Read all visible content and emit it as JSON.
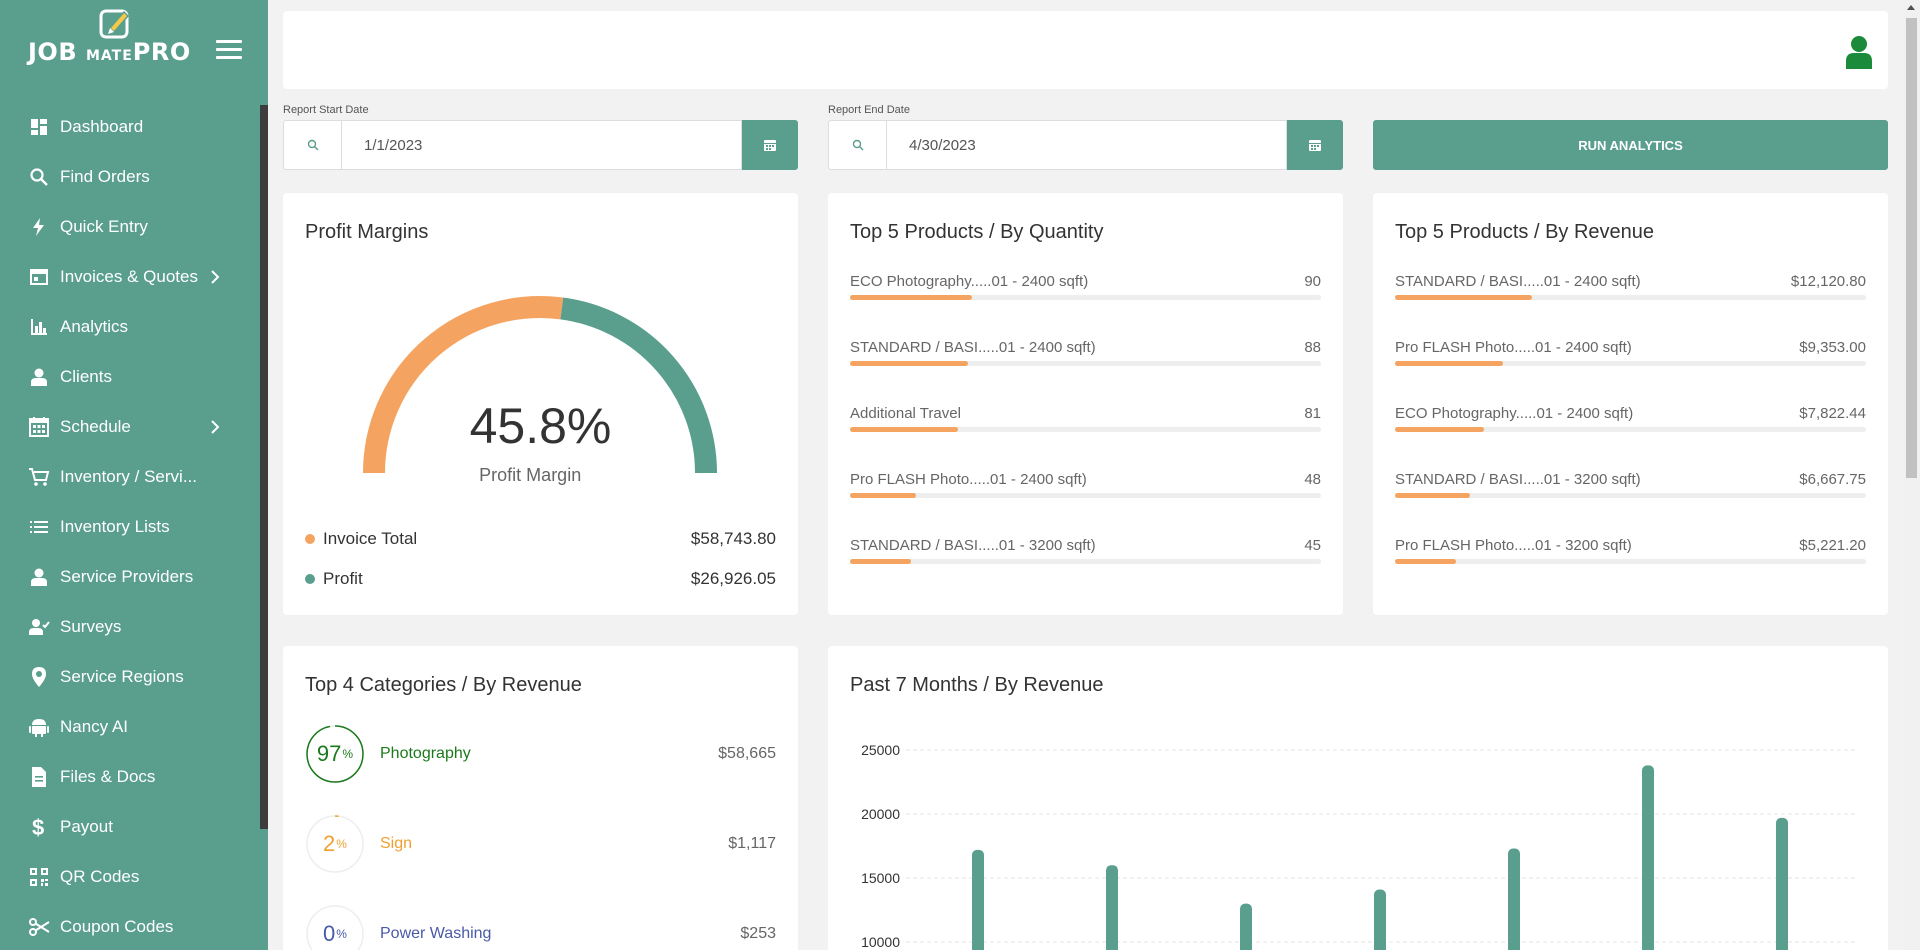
{
  "brand": {
    "name_left": "JOB",
    "name_middle": "MATE",
    "name_right": "PRO"
  },
  "colors": {
    "accent": "#5a9e8e",
    "orange": "#f4a460",
    "user_icon": "#1b8a3a"
  },
  "sidebar": {
    "items": [
      {
        "label": "Dashboard",
        "icon": "dashboard-icon",
        "has_submenu": false
      },
      {
        "label": "Find Orders",
        "icon": "search-icon",
        "has_submenu": false
      },
      {
        "label": "Quick Entry",
        "icon": "lightning-icon",
        "has_submenu": false
      },
      {
        "label": "Invoices & Quotes",
        "icon": "invoice-icon",
        "has_submenu": true
      },
      {
        "label": "Analytics",
        "icon": "bar-chart-icon",
        "has_submenu": false
      },
      {
        "label": "Clients",
        "icon": "user-icon",
        "has_submenu": false
      },
      {
        "label": "Schedule",
        "icon": "calendar-icon",
        "has_submenu": true
      },
      {
        "label": "Inventory / Servi...",
        "icon": "cart-icon",
        "has_submenu": false
      },
      {
        "label": "Inventory Lists",
        "icon": "list-icon",
        "has_submenu": false
      },
      {
        "label": "Service Providers",
        "icon": "user-icon",
        "has_submenu": false
      },
      {
        "label": "Surveys",
        "icon": "people-icon",
        "has_submenu": false
      },
      {
        "label": "Service Regions",
        "icon": "map-pin-icon",
        "has_submenu": false
      },
      {
        "label": "Nancy AI",
        "icon": "android-icon",
        "has_submenu": false
      },
      {
        "label": "Files & Docs",
        "icon": "document-icon",
        "has_submenu": false
      },
      {
        "label": "Payout",
        "icon": "dollar-icon",
        "has_submenu": false
      },
      {
        "label": "QR Codes",
        "icon": "qr-code-icon",
        "has_submenu": false
      },
      {
        "label": "Coupon Codes",
        "icon": "scissors-icon",
        "has_submenu": false
      }
    ]
  },
  "filters": {
    "start_label": "Report Start Date",
    "start_value": "1/1/2023",
    "end_label": "Report End Date",
    "end_value": "4/30/2023",
    "run_label": "RUN ANALYTICS"
  },
  "profit": {
    "title": "Profit Margins",
    "value": "45.8%",
    "value_fraction": 0.458,
    "caption": "Profit Margin",
    "legend": [
      {
        "label": "Invoice Total",
        "value": "$58,743.80",
        "color": "#f4a460"
      },
      {
        "label": "Profit",
        "value": "$26,926.05",
        "color": "#5a9e8e"
      }
    ]
  },
  "top_quantity": {
    "title": "Top 5 Products / By Quantity",
    "items": [
      {
        "name": "ECO Photography.....01 - 2400 sqft)",
        "value": "90",
        "fraction": 0.26
      },
      {
        "name": "STANDARD / BASI.....01 - 2400 sqft)",
        "value": "88",
        "fraction": 0.25
      },
      {
        "name": "Additional Travel",
        "value": "81",
        "fraction": 0.23
      },
      {
        "name": "Pro FLASH Photo.....01 - 2400 sqft)",
        "value": "48",
        "fraction": 0.14
      },
      {
        "name": "STANDARD / BASI.....01 - 3200 sqft)",
        "value": "45",
        "fraction": 0.13
      }
    ]
  },
  "top_revenue": {
    "title": "Top 5 Products / By Revenue",
    "items": [
      {
        "name": "STANDARD / BASI.....01 - 2400 sqft)",
        "value": "$12,120.80",
        "fraction": 0.29
      },
      {
        "name": "Pro FLASH Photo.....01 - 2400 sqft)",
        "value": "$9,353.00",
        "fraction": 0.23
      },
      {
        "name": "ECO Photography.....01 - 2400 sqft)",
        "value": "$7,822.44",
        "fraction": 0.19
      },
      {
        "name": "STANDARD / BASI.....01 - 3200 sqft)",
        "value": "$6,667.75",
        "fraction": 0.16
      },
      {
        "name": "Pro FLASH Photo.....01 - 3200 sqft)",
        "value": "$5,221.20",
        "fraction": 0.13
      }
    ]
  },
  "categories": {
    "title": "Top 4 Categories / By Revenue",
    "items": [
      {
        "pct": "97",
        "pct_unit": "%",
        "fraction": 0.97,
        "name": "Photography",
        "value": "$58,665",
        "color": "#1b7a1b"
      },
      {
        "pct": "2",
        "pct_unit": "%",
        "fraction": 0.02,
        "name": "Sign",
        "value": "$1,117",
        "color": "#f0a030"
      },
      {
        "pct": "0",
        "pct_unit": "%",
        "fraction": 0.0,
        "name": "Power Washing",
        "value": "$253",
        "color": "#4a5aa8"
      }
    ]
  },
  "revenue_chart": {
    "title": "Past 7 Months / By Revenue",
    "chart_data": {
      "type": "bar",
      "values": [
        17200,
        16000,
        13000,
        14100,
        17300,
        23800,
        19700
      ],
      "y_ticks": [
        "25000",
        "20000",
        "15000",
        "10000"
      ],
      "ylim": [
        10000,
        25000
      ],
      "grid": true
    }
  }
}
